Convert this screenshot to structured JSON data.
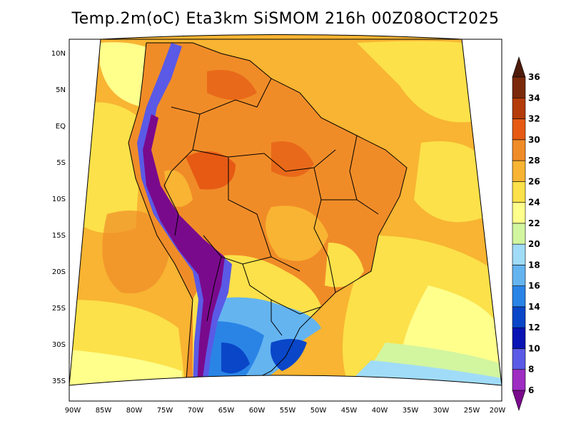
{
  "title": "Temp.2m(oC) Eta3km SiSMOM 216h 00Z08OCT2025",
  "lat_labels": [
    "10N",
    "5N",
    "EQ",
    "5S",
    "10S",
    "15S",
    "20S",
    "25S",
    "30S",
    "35S"
  ],
  "lon_labels": [
    "90W",
    "85W",
    "80W",
    "75W",
    "70W",
    "65W",
    "60W",
    "55W",
    "50W",
    "45W",
    "40W",
    "35W",
    "30W",
    "25W",
    "20W"
  ],
  "colorbar": {
    "labels": [
      "6",
      "8",
      "10",
      "12",
      "14",
      "16",
      "18",
      "20",
      "22",
      "24",
      "26",
      "28",
      "30",
      "32",
      "34",
      "36"
    ],
    "colors": [
      "#7a0a8c",
      "#9e2dc2",
      "#5a5ae6",
      "#0a14b4",
      "#0a46c8",
      "#2a84e6",
      "#64b4f0",
      "#a0dcf8",
      "#d2f5a0",
      "#ffff8c",
      "#fce14a",
      "#f8b432",
      "#f08c28",
      "#e65a14",
      "#b43c0a",
      "#7a2a0a",
      "#4e1c0a"
    ]
  },
  "colors": {
    "ocean_warm": "#f8b432",
    "ocean_mild": "#fce14a",
    "ocean_cool": "#ffff8c",
    "land_hot": "#f08c28",
    "andes_cold": "#7a0a8c",
    "south_cool": "#2a84e6"
  }
}
